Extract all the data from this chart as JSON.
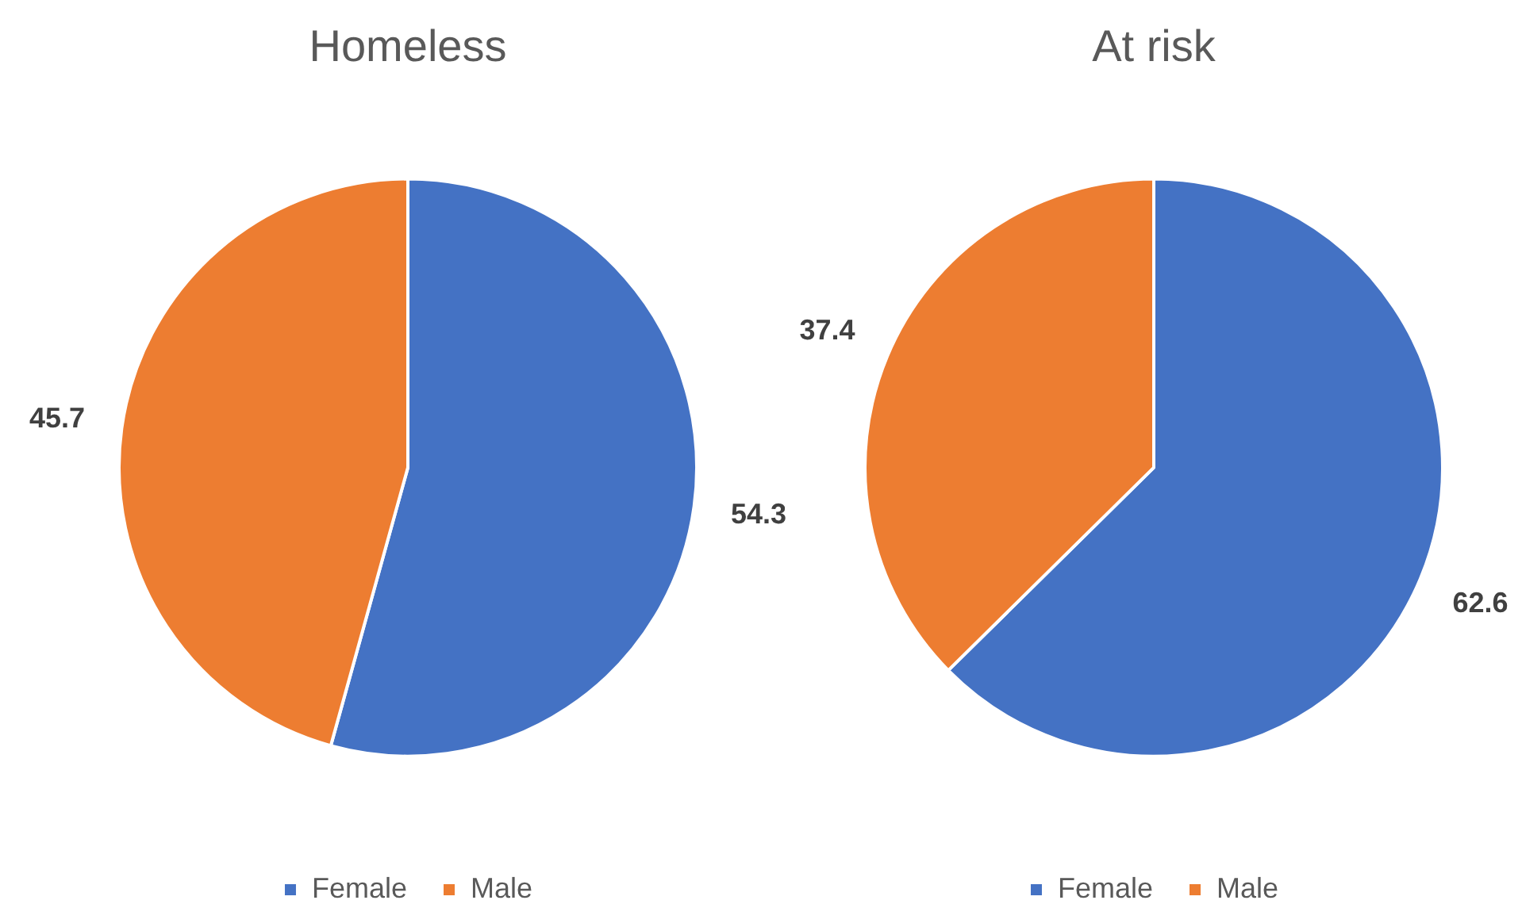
{
  "chart_data": [
    {
      "type": "pie",
      "title": "Homeless",
      "categories": [
        "Female",
        "Male"
      ],
      "values": [
        54.3,
        45.7
      ],
      "colors": [
        "#4472c4",
        "#ed7d31"
      ],
      "data_labels": true,
      "legend": "bottom"
    },
    {
      "type": "pie",
      "title": "At risk",
      "categories": [
        "Female",
        "Male"
      ],
      "values": [
        62.6,
        37.4
      ],
      "colors": [
        "#4472c4",
        "#ed7d31"
      ],
      "data_labels": true,
      "legend": "bottom"
    }
  ]
}
